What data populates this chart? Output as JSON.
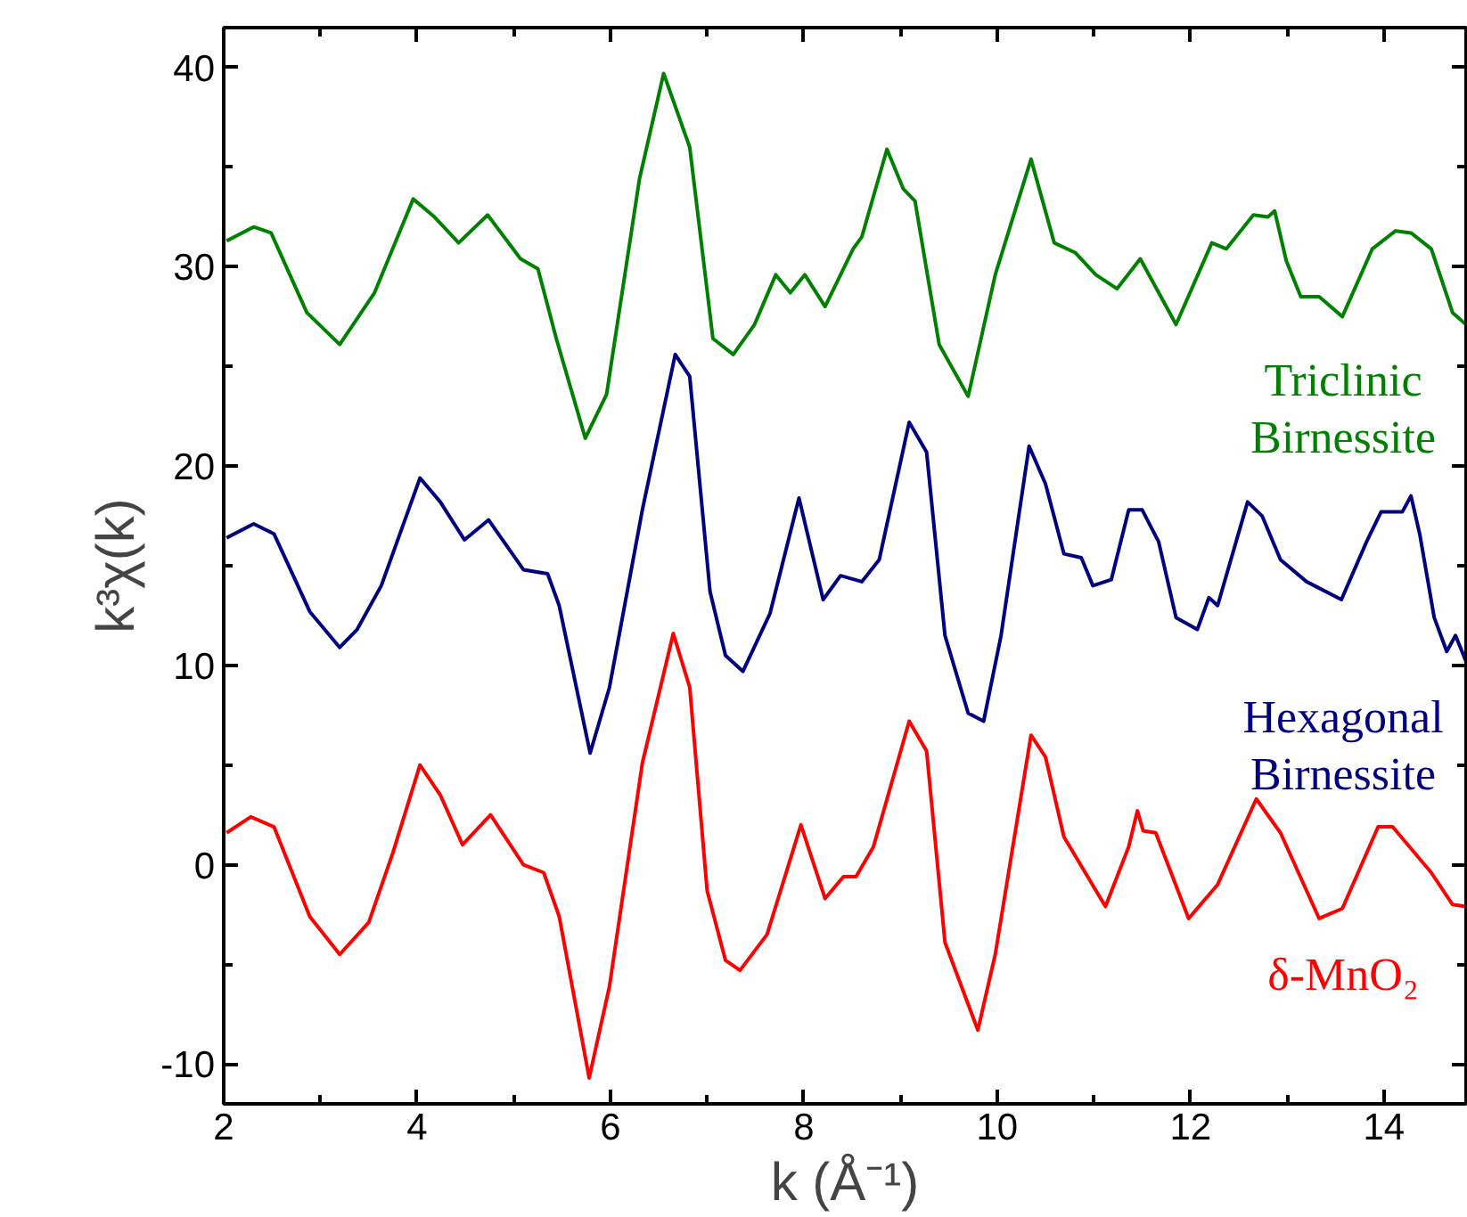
{
  "chart_data": {
    "type": "line",
    "xlabel": "k (Å⁻¹)",
    "ylabel": "k³χ(k)",
    "xlim": [
      2,
      14.85
    ],
    "ylim": [
      -12,
      42
    ],
    "xticks": [
      2,
      {
        "value": 3,
        "label": null
      },
      4,
      {
        "value": 5,
        "label": null
      },
      6,
      {
        "value": 7,
        "label": null
      },
      8,
      {
        "value": 9,
        "label": null
      },
      10,
      {
        "value": 11,
        "label": null
      },
      12,
      {
        "value": 13,
        "label": null
      },
      14
    ],
    "yticks": [
      {
        "value": -10,
        "label": "-10"
      },
      {
        "value": -5,
        "label": null
      },
      0,
      {
        "value": 5,
        "label": null
      },
      10,
      {
        "value": 15,
        "label": null
      },
      20,
      {
        "value": 25,
        "label": null
      },
      30,
      {
        "value": 35,
        "label": null
      },
      40
    ],
    "grid": false,
    "legend": false,
    "line_style": "solid",
    "marker": "none",
    "series": [
      {
        "name": "Triclinic Birnessite",
        "color": "#008000",
        "x": [
          2.03,
          2.31,
          2.49,
          2.86,
          3.2,
          3.56,
          3.96,
          4.18,
          4.43,
          4.73,
          5.07,
          5.25,
          5.44,
          5.74,
          5.96,
          6.3,
          6.55,
          6.82,
          7.06,
          7.27,
          7.49,
          7.71,
          7.86,
          8.01,
          8.22,
          8.51,
          8.6,
          8.86,
          9.03,
          9.15,
          9.4,
          9.7,
          9.98,
          10.35,
          10.59,
          10.81,
          11.02,
          11.24,
          11.48,
          11.85,
          12.22,
          12.37,
          12.65,
          12.8,
          12.87,
          12.99,
          13.14,
          13.33,
          13.57,
          13.88,
          14.12,
          14.28,
          14.49,
          14.71,
          14.85
        ],
        "values": [
          31.3,
          32.0,
          31.7,
          27.7,
          26.1,
          28.7,
          33.4,
          32.5,
          31.2,
          32.6,
          30.4,
          29.9,
          26.4,
          21.4,
          23.6,
          34.4,
          39.7,
          36.0,
          26.4,
          25.6,
          27.1,
          29.6,
          28.7,
          29.6,
          28.0,
          30.9,
          31.5,
          35.9,
          33.9,
          33.3,
          26.1,
          23.5,
          29.6,
          35.4,
          31.2,
          30.7,
          29.6,
          28.9,
          30.4,
          27.1,
          31.2,
          30.9,
          32.6,
          32.5,
          32.8,
          30.3,
          28.5,
          28.5,
          27.5,
          30.9,
          31.8,
          31.7,
          30.9,
          27.7,
          27.1
        ]
      },
      {
        "name": "Hexagonal Birnessite",
        "color": "#000080",
        "x": [
          2.03,
          2.31,
          2.52,
          2.89,
          3.2,
          3.38,
          3.63,
          4.03,
          4.24,
          4.49,
          4.74,
          5.1,
          5.35,
          5.47,
          5.79,
          5.99,
          6.33,
          6.67,
          6.82,
          7.03,
          7.19,
          7.37,
          7.65,
          7.95,
          8.2,
          8.38,
          8.6,
          8.78,
          9.09,
          9.27,
          9.46,
          9.7,
          9.86,
          10.04,
          10.33,
          10.5,
          10.69,
          10.87,
          10.99,
          11.18,
          11.36,
          11.5,
          11.67,
          11.85,
          12.07,
          12.19,
          12.28,
          12.59,
          12.74,
          12.93,
          13.2,
          13.56,
          13.82,
          13.97,
          14.19,
          14.28,
          14.37,
          14.52,
          14.65,
          14.74,
          14.85
        ],
        "values": [
          16.4,
          17.1,
          16.6,
          12.7,
          10.9,
          11.8,
          14.0,
          19.4,
          18.2,
          16.3,
          17.3,
          14.8,
          14.6,
          13.0,
          5.6,
          8.9,
          17.8,
          25.6,
          24.5,
          13.7,
          10.5,
          9.7,
          12.6,
          18.4,
          13.3,
          14.5,
          14.2,
          15.3,
          22.2,
          20.7,
          11.5,
          7.6,
          7.2,
          11.5,
          21.0,
          19.1,
          15.6,
          15.4,
          14.0,
          14.3,
          17.8,
          17.8,
          16.2,
          12.4,
          11.8,
          13.4,
          13.0,
          18.2,
          17.5,
          15.3,
          14.2,
          13.3,
          16.2,
          17.7,
          17.7,
          18.5,
          16.6,
          12.4,
          10.7,
          11.5,
          10.2
        ]
      },
      {
        "name": "δ-MnO₂",
        "color": "#ff0000",
        "x": [
          2.03,
          2.28,
          2.52,
          2.89,
          3.2,
          3.5,
          3.75,
          4.03,
          4.24,
          4.47,
          4.76,
          5.1,
          5.31,
          5.47,
          5.78,
          5.99,
          6.33,
          6.65,
          6.82,
          7.0,
          7.19,
          7.34,
          7.62,
          7.97,
          8.22,
          8.41,
          8.54,
          8.72,
          9.09,
          9.27,
          9.46,
          9.8,
          9.98,
          10.35,
          10.5,
          10.69,
          11.12,
          11.36,
          11.45,
          11.51,
          11.64,
          11.98,
          12.28,
          12.68,
          12.93,
          13.33,
          13.57,
          13.94,
          14.09,
          14.49,
          14.71,
          14.85
        ],
        "values": [
          1.6,
          2.4,
          1.9,
          -2.6,
          -4.5,
          -2.9,
          0.6,
          5.0,
          3.5,
          1.0,
          2.5,
          0.0,
          -0.4,
          -2.6,
          -10.7,
          -6.1,
          5.1,
          11.6,
          8.9,
          -1.3,
          -4.8,
          -5.3,
          -3.5,
          2.0,
          -1.7,
          -0.6,
          -0.6,
          0.9,
          7.2,
          5.7,
          -3.9,
          -8.3,
          -4.5,
          6.5,
          5.4,
          1.4,
          -2.1,
          0.9,
          2.7,
          1.7,
          1.6,
          -2.7,
          -1.0,
          3.3,
          1.6,
          -2.7,
          -2.2,
          1.9,
          1.9,
          -0.4,
          -2.0,
          -2.1
        ]
      }
    ]
  }
}
